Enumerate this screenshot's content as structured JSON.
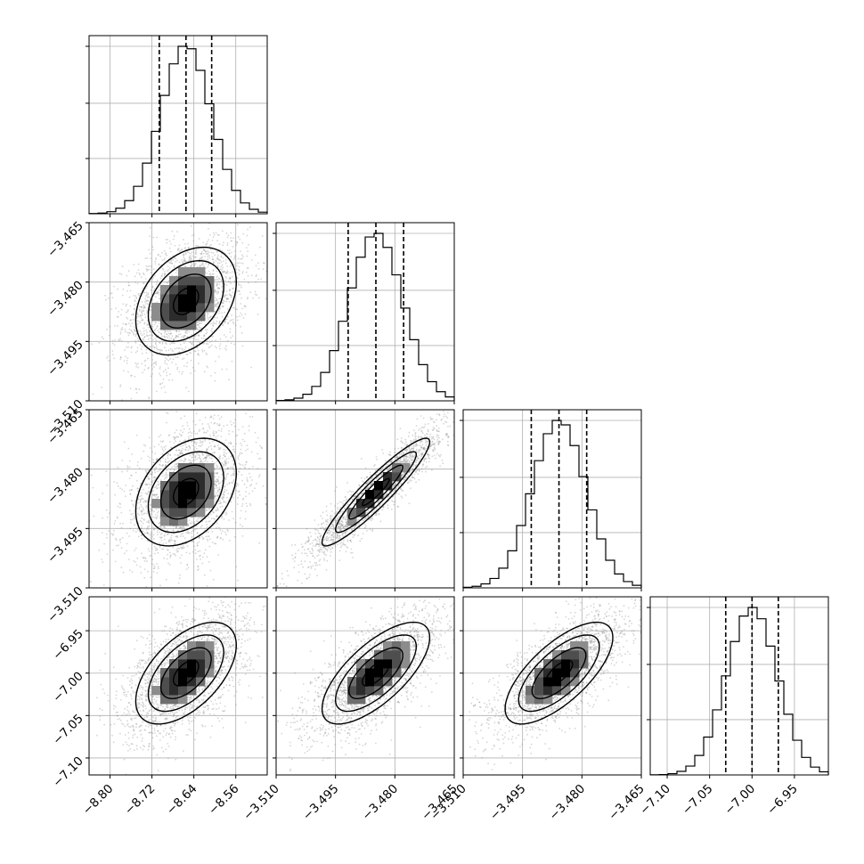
{
  "chart_data": {
    "type": "corner",
    "parameters": [
      {
        "mean": -8.655,
        "sd": 0.048,
        "q16": -8.706,
        "q50": -8.655,
        "q84": -8.606,
        "range": [
          -8.84,
          -8.5
        ],
        "ticks": [
          -8.8,
          -8.72,
          -8.64,
          -8.56
        ],
        "tick_labels": [
          "−8.80",
          "−8.72",
          "−8.64",
          "−8.56"
        ]
      },
      {
        "mean": -3.4848,
        "sd": 0.0068,
        "q16": -3.4918,
        "q50": -3.4848,
        "q84": -3.4778,
        "range": [
          -3.51,
          -3.465
        ],
        "ticks": [
          -3.51,
          -3.495,
          -3.48,
          -3.465
        ],
        "tick_labels": [
          "−3.510",
          "−3.495",
          "−3.480",
          "−3.465"
        ]
      },
      {
        "mean": -3.4858,
        "sd": 0.0068,
        "q16": -3.4928,
        "q50": -3.4858,
        "q84": -3.4788,
        "range": [
          -3.51,
          -3.465
        ],
        "ticks": [
          -3.51,
          -3.495,
          -3.48,
          -3.465
        ],
        "tick_labels": [
          "−3.510",
          "−3.495",
          "−3.480",
          "−3.465"
        ]
      },
      {
        "mean": -7.0,
        "sd": 0.03,
        "q16": -7.031,
        "q50": -7.0,
        "q84": -6.969,
        "range": [
          -7.12,
          -6.91
        ],
        "ticks": [
          -7.1,
          -7.05,
          -7.0,
          -6.95
        ],
        "tick_labels": [
          "−7.10",
          "−7.05",
          "−7.00",
          "−6.95"
        ]
      }
    ],
    "correlations": [
      [
        1,
        0.35,
        0.35,
        0.55
      ],
      [
        0.35,
        1,
        0.93,
        0.7
      ],
      [
        0.35,
        0.93,
        1,
        0.7
      ],
      [
        0.55,
        0.7,
        0.7,
        1
      ]
    ],
    "histogram_bins": 20,
    "quantiles": [
      0.16,
      0.5,
      0.84
    ],
    "contour_levels": [
      0.5,
      1.0,
      1.5,
      2.0
    ],
    "grid": true,
    "scatter_color": "#8a8a8a",
    "line_color": "#000000"
  }
}
